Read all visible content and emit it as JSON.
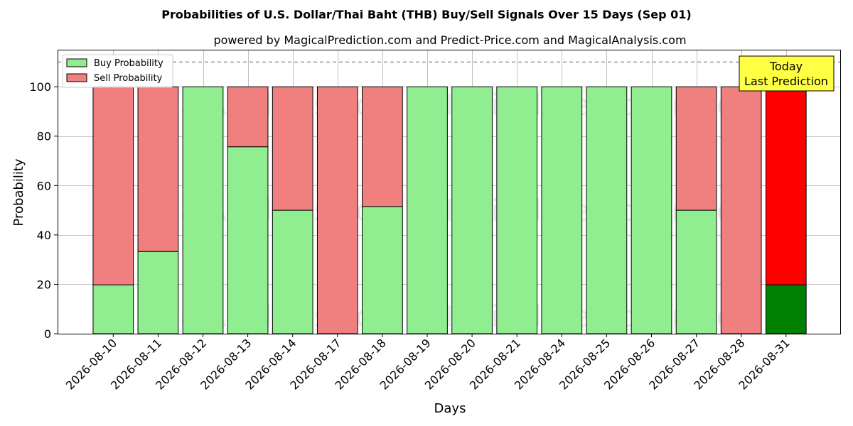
{
  "chart_data": {
    "type": "bar",
    "stacked": true,
    "title": "Probabilities of U.S. Dollar/Thai Baht (THB) Buy/Sell Signals Over 15 Days (Sep 01)",
    "subtitle": "powered by MagicalPrediction.com and Predict-Price.com and MagicalAnalysis.com",
    "xlabel": "Days",
    "ylabel": "Probability",
    "ylim": [
      0,
      115
    ],
    "yticks": [
      0,
      20,
      40,
      60,
      80,
      100
    ],
    "grid": true,
    "legend_position": "top-left",
    "reference_line": 110,
    "categories": [
      "2026-08-10",
      "2026-08-11",
      "2026-08-12",
      "2026-08-13",
      "2026-08-14",
      "2026-08-17",
      "2026-08-18",
      "2026-08-19",
      "2026-08-20",
      "2026-08-21",
      "2026-08-24",
      "2026-08-25",
      "2026-08-26",
      "2026-08-27",
      "2026-08-28",
      "2026-08-31"
    ],
    "series": [
      {
        "name": "Buy Probability",
        "color": "#90ee90",
        "values": [
          19.8,
          33.3,
          100,
          75.7,
          50,
          0,
          51.5,
          100,
          100,
          100,
          100,
          100,
          100,
          50,
          0,
          19.8
        ]
      },
      {
        "name": "Sell Probability",
        "color": "#f08080",
        "values": [
          80.2,
          66.7,
          0,
          24.3,
          50,
          100,
          48.5,
          0,
          0,
          0,
          0,
          0,
          0,
          50,
          100,
          80.2
        ]
      }
    ],
    "highlight": {
      "index": 15,
      "buy_color": "#008000",
      "sell_color": "#ff0000"
    },
    "annotation": {
      "line1": "Today",
      "line2": "Last Prediction",
      "color": "#ffff44"
    },
    "watermarks": [
      "MagicalAnalysis.com",
      "MagicalPrediction.com"
    ]
  }
}
